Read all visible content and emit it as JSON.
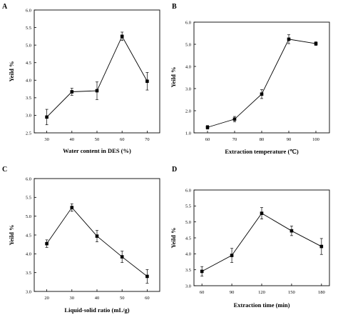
{
  "chart_data": [
    {
      "panel": "A",
      "type": "line",
      "xlabel": "Water content in DES (%)",
      "ylabel": "Yeild %",
      "x": [
        30,
        40,
        50,
        60,
        70
      ],
      "y": [
        2.95,
        3.67,
        3.7,
        5.25,
        3.97
      ],
      "err": [
        0.22,
        0.1,
        0.25,
        0.12,
        0.25
      ],
      "xlim": [
        25,
        75
      ],
      "ylim": [
        2.5,
        6.0
      ],
      "xticks": [
        "30",
        "40",
        "50",
        "60",
        "70"
      ],
      "yticks": [
        "2.5",
        "3.0",
        "3.5",
        "4.0",
        "4.5",
        "5.0",
        "5.5",
        "6.0"
      ],
      "color": "#000000",
      "grid": false,
      "legend": false
    },
    {
      "panel": "B",
      "type": "line",
      "xlabel": "Extraction temperature (℃)",
      "ylabel": "Yeild %",
      "x": [
        60,
        70,
        80,
        90,
        100
      ],
      "y": [
        1.25,
        1.62,
        2.75,
        5.23,
        5.03
      ],
      "err": [
        0.08,
        0.12,
        0.2,
        0.2,
        0.08
      ],
      "xlim": [
        55,
        105
      ],
      "ylim": [
        1.0,
        6.0
      ],
      "xticks": [
        "60",
        "70",
        "80",
        "90",
        "100"
      ],
      "yticks": [
        "1.0",
        "2.0",
        "3.0",
        "4.0",
        "5.0",
        "6.0"
      ],
      "color": "#000000",
      "grid": false,
      "legend": false
    },
    {
      "panel": "C",
      "type": "line",
      "xlabel": "Liquid-solid ratio (mL/g)",
      "ylabel": "Yeild %",
      "x": [
        20,
        30,
        40,
        50,
        60
      ],
      "y": [
        4.27,
        5.23,
        4.47,
        3.92,
        3.4
      ],
      "err": [
        0.1,
        0.1,
        0.15,
        0.15,
        0.18
      ],
      "xlim": [
        15,
        65
      ],
      "ylim": [
        3.0,
        6.0
      ],
      "xticks": [
        "20",
        "30",
        "40",
        "50",
        "60"
      ],
      "yticks": [
        "3.0",
        "3.5",
        "4.0",
        "4.5",
        "5.0",
        "5.5",
        "6.0"
      ],
      "color": "#000000",
      "grid": false,
      "legend": false
    },
    {
      "panel": "D",
      "type": "line",
      "xlabel": "Extraction time (min)",
      "ylabel": "Yeild %",
      "x": [
        60,
        90,
        120,
        150,
        180
      ],
      "y": [
        3.45,
        3.95,
        5.27,
        4.72,
        4.23
      ],
      "err": [
        0.15,
        0.22,
        0.18,
        0.15,
        0.25
      ],
      "xlim": [
        52,
        188
      ],
      "ylim": [
        3.0,
        6.0
      ],
      "xticks": [
        "60",
        "90",
        "120",
        "150",
        "180"
      ],
      "yticks": [
        "3.0",
        "3.5",
        "4.0",
        "4.5",
        "5.0",
        "5.5",
        "6.0"
      ],
      "color": "#000000",
      "grid": false,
      "legend": false
    }
  ]
}
